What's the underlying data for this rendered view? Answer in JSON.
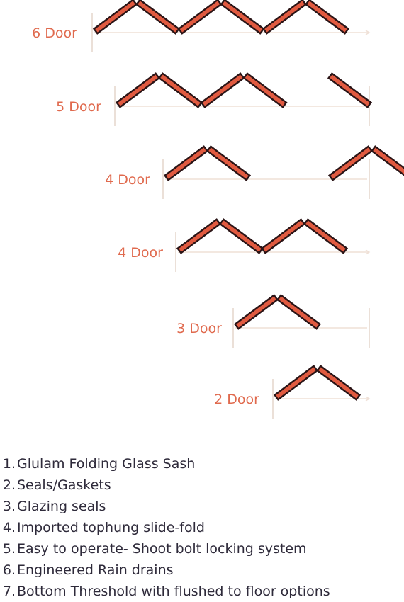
{
  "configurations": [
    {
      "label": "6 Door",
      "doors": 6,
      "layout": "aa1 ba1 aa2 ba2 aa3 ba3",
      "arrow": true
    },
    {
      "label": "5 Door",
      "doors": 5,
      "layout": "aa1 ba1 aa2 ba2 ba3",
      "arrow": false
    },
    {
      "label": "4 Door",
      "doors": 4,
      "layout": "aa1 ba1 aa3 ba3",
      "arrow": false
    },
    {
      "label": "4 Door",
      "doors": 4,
      "layout": "aa1 ba1 aa2 ba2",
      "arrow": true
    },
    {
      "label": "3 Door",
      "doors": 3,
      "layout": "aa1 ba1 ba3",
      "arrow": false
    },
    {
      "label": "2 Door",
      "doors": 2,
      "layout": "aa1 ba1",
      "arrow": true
    }
  ],
  "features": [
    {
      "number": "1.",
      "text": "Glulam Folding Glass Sash"
    },
    {
      "number": "2.",
      "text": "Seals/Gaskets"
    },
    {
      "number": "3.",
      "text": "Glazing seals"
    },
    {
      "number": "4.",
      "text": "Imported tophung slide-fold"
    },
    {
      "number": "5.",
      "text": "Easy to operate- Shoot bolt locking system"
    },
    {
      "number": "6.",
      "text": "Engineered Rain drains"
    },
    {
      "number": "7.",
      "text": "Bottom Threshold with flushed to floor options"
    }
  ],
  "colors": {
    "label": "#e06a4e",
    "panel_fill": "#e05a40",
    "panel_stroke": "#2a1416",
    "track": "#efe0d6",
    "text": "#2e2a3a"
  }
}
